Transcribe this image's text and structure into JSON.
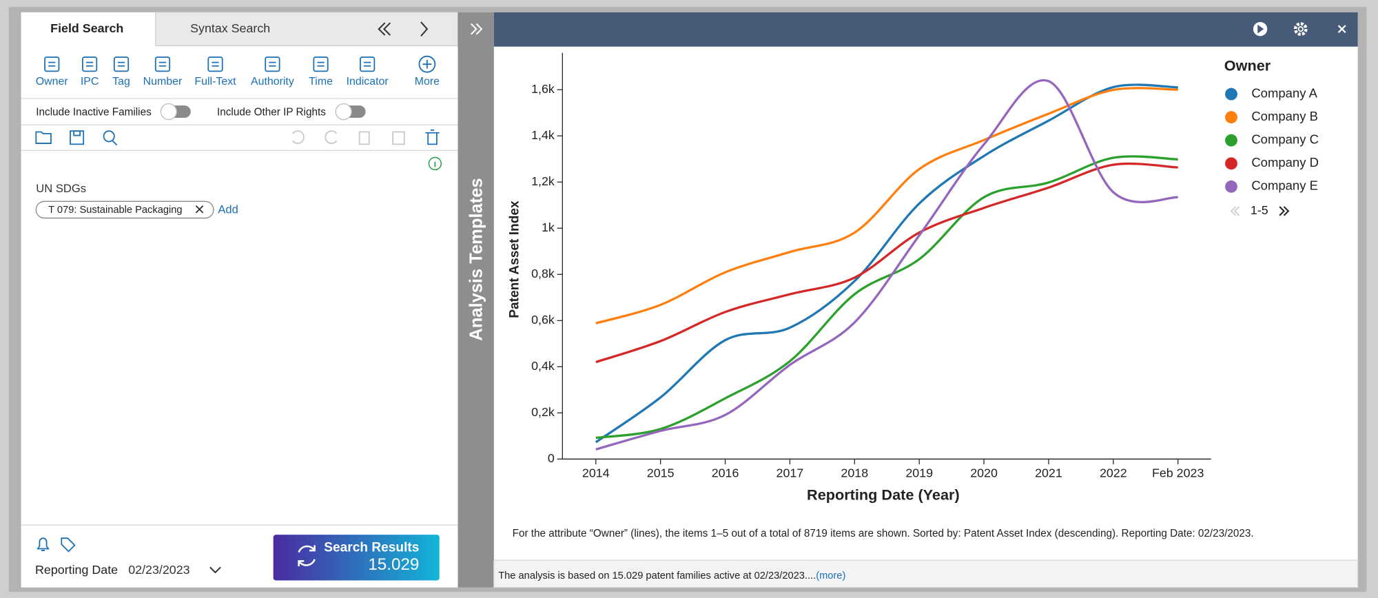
{
  "left_panel": {
    "tabs": [
      "Field Search",
      "Syntax Search"
    ],
    "toolbar": [
      "Owner",
      "IPC",
      "Tag",
      "Number",
      "Full-Text",
      "Authority",
      "Time",
      "Indicator",
      "More"
    ],
    "toggles": [
      "Include Inactive Families",
      "Include Other IP Rights"
    ],
    "field_label": "UN SDGs",
    "chip": "T 079: Sustainable Packaging",
    "add": "Add",
    "reporting_date_label": "Reporting Date",
    "reporting_date": "02/23/2023",
    "search_button": "Search Results",
    "result_count": "15.029"
  },
  "side_strip": "Analysis Templates",
  "chart_data": {
    "type": "line",
    "x_label": "Reporting Date (Year)",
    "y_label": "Patent Asset Index",
    "legend_title": "Owner",
    "legend_page": "1-5",
    "categories": [
      "2014",
      "2015",
      "2016",
      "2017",
      "2018",
      "2019",
      "2020",
      "2021",
      "2022",
      "Feb 2023"
    ],
    "ylim": [
      0,
      1760
    ],
    "yticks": [
      0,
      {
        "value": 200,
        "label": "0,2k"
      },
      {
        "value": 400,
        "label": "0,4k"
      },
      {
        "value": 600,
        "label": "0,6k"
      },
      {
        "value": 800,
        "label": "0,8k"
      },
      {
        "value": 1000,
        "label": "1k"
      },
      {
        "value": 1200,
        "label": "1,2k"
      },
      {
        "value": 1400,
        "label": "1,4k"
      },
      {
        "value": 1600,
        "label": "1,6k"
      }
    ],
    "series": [
      {
        "name": "Company A",
        "color": "#1f77b4",
        "values": [
          73,
          267,
          515,
          569,
          771,
          1107,
          1313,
          1466,
          1611,
          1610
        ]
      },
      {
        "name": "Company B",
        "color": "#ff7f0e",
        "values": [
          588,
          668,
          809,
          897,
          981,
          1256,
          1382,
          1496,
          1599,
          1600
        ]
      },
      {
        "name": "Company C",
        "color": "#2ca02c",
        "values": [
          92,
          130,
          263,
          424,
          714,
          866,
          1134,
          1198,
          1305,
          1298
        ]
      },
      {
        "name": "Company D",
        "color": "#d62728",
        "values": [
          420,
          511,
          637,
          714,
          786,
          981,
          1088,
          1176,
          1275,
          1263
        ]
      },
      {
        "name": "Company E",
        "color": "#9467bd",
        "values": [
          42,
          122,
          191,
          408,
          592,
          969,
          1363,
          1637,
          1156,
          1134
        ]
      }
    ],
    "footnote": "For the attribute “Owner” (lines), the items 1–5 out of a total of 8719 items are shown. Sorted by: Patent Asset Index (descending). Reporting Date: 02/23/2023."
  },
  "footer": {
    "text": "The analysis is based on 15.029 patent families active at 02/23/2023....",
    "link": "(more)"
  }
}
